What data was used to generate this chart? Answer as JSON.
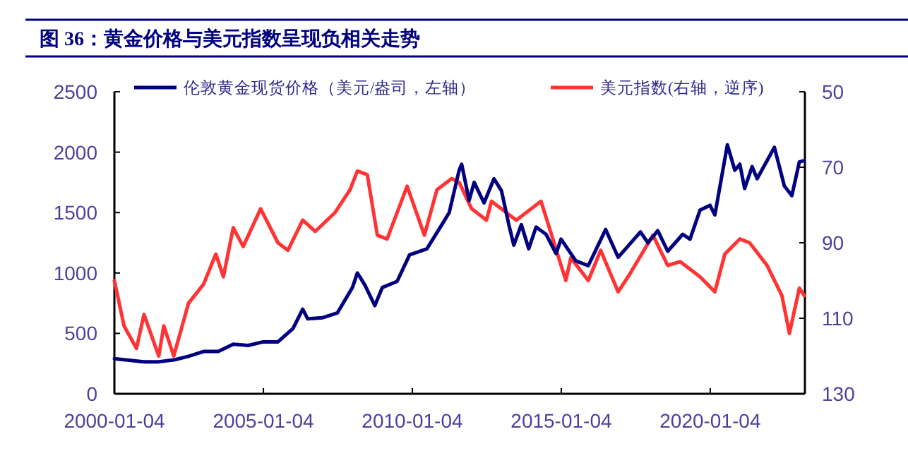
{
  "chart_data": {
    "type": "line",
    "title": "图 36：黄金价格与美元指数呈现负相关走势",
    "legend": "top",
    "xlim": [
      "2000-01-04",
      "2023-03-10"
    ],
    "xticks": [
      "2000-01-04",
      "2005-01-04",
      "2010-01-04",
      "2015-01-04",
      "2020-01-04"
    ],
    "ylim": [
      0,
      2500
    ],
    "yticks": [
      0,
      500,
      1000,
      1500,
      2000,
      2500
    ],
    "y2lim": [
      130,
      50
    ],
    "y2ticks": [
      50,
      70,
      90,
      110,
      130
    ],
    "series": [
      {
        "name": "伦敦黄金现货价格（美元/盎司，左轴）",
        "color": "#000080",
        "x": [
          "2000-01-04",
          "2001-01",
          "2001-07",
          "2002-01",
          "2002-07",
          "2003-01",
          "2003-07",
          "2004-01",
          "2004-07",
          "2005-01",
          "2005-07",
          "2006-01",
          "2006-05",
          "2006-07",
          "2007-01",
          "2007-07",
          "2008-01",
          "2008-03",
          "2008-06",
          "2008-10",
          "2009-01",
          "2009-07",
          "2009-12",
          "2010-07",
          "2011-01",
          "2011-04",
          "2011-08",
          "2011-09",
          "2011-12",
          "2012-02",
          "2012-06",
          "2012-10",
          "2013-01",
          "2013-04",
          "2013-06",
          "2013-09",
          "2013-12",
          "2014-03",
          "2014-07",
          "2014-11",
          "2015-01",
          "2015-07",
          "2015-12",
          "2016-07",
          "2016-12",
          "2017-09",
          "2017-12",
          "2018-04",
          "2018-08",
          "2019-02",
          "2019-05",
          "2019-09",
          "2020-01",
          "2020-03",
          "2020-08",
          "2020-11",
          "2021-01",
          "2021-03",
          "2021-06",
          "2021-08",
          "2022-03",
          "2022-07",
          "2022-10",
          "2023-01",
          "2023-03"
        ],
        "values": [
          290,
          265,
          265,
          280,
          310,
          350,
          350,
          410,
          400,
          430,
          430,
          540,
          700,
          620,
          630,
          670,
          880,
          1000,
          900,
          730,
          880,
          930,
          1150,
          1200,
          1400,
          1500,
          1850,
          1900,
          1600,
          1750,
          1580,
          1780,
          1680,
          1400,
          1230,
          1400,
          1200,
          1380,
          1320,
          1160,
          1280,
          1100,
          1060,
          1360,
          1130,
          1340,
          1250,
          1350,
          1180,
          1320,
          1280,
          1520,
          1560,
          1480,
          2060,
          1850,
          1900,
          1700,
          1880,
          1780,
          2040,
          1720,
          1640,
          1920,
          1930
        ]
      },
      {
        "name": "美元指数(右轴，逆序)",
        "color": "#ff3333",
        "axis": "y2",
        "x": [
          "2000-01-04",
          "2000-05",
          "2000-10",
          "2001-01",
          "2001-07",
          "2001-09",
          "2002-01",
          "2002-07",
          "2003-01",
          "2003-06",
          "2003-09",
          "2004-01",
          "2004-05",
          "2004-12",
          "2005-07",
          "2005-11",
          "2006-05",
          "2006-10",
          "2007-06",
          "2007-12",
          "2008-03",
          "2008-07",
          "2008-11",
          "2009-03",
          "2009-11",
          "2010-06",
          "2010-11",
          "2011-05",
          "2011-08",
          "2012-01",
          "2012-07",
          "2012-09",
          "2013-07",
          "2014-05",
          "2015-03",
          "2015-05",
          "2015-12",
          "2016-05",
          "2016-12",
          "2017-05",
          "2018-02",
          "2018-08",
          "2019-01",
          "2019-09",
          "2020-03",
          "2020-07",
          "2021-01",
          "2021-05",
          "2021-12",
          "2022-06",
          "2022-09",
          "2023-01",
          "2023-03"
        ],
        "values": [
          100,
          112,
          118,
          109,
          120,
          112,
          120,
          106,
          101,
          93,
          99,
          86,
          91,
          81,
          90,
          92,
          84,
          87,
          82,
          76,
          71,
          72,
          88,
          89,
          75,
          88,
          76,
          73,
          74,
          81,
          84,
          79,
          84,
          79,
          100,
          94,
          100,
          92,
          103,
          98,
          88,
          96,
          95,
          99,
          103,
          93,
          89,
          90,
          96,
          104,
          114,
          102,
          104
        ]
      }
    ]
  }
}
